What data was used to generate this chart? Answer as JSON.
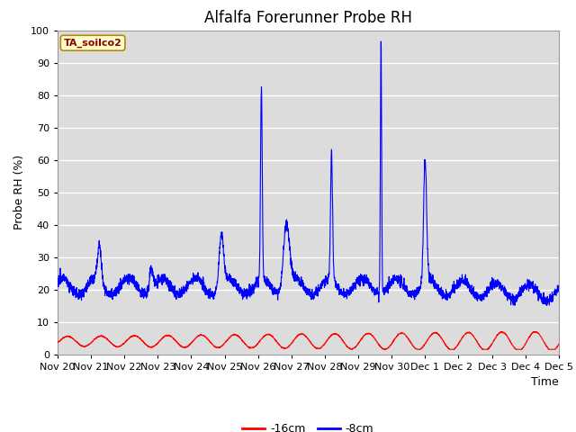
{
  "title": "Alfalfa Forerunner Probe RH",
  "ylabel": "Probe RH (%)",
  "xlabel": "Time",
  "station_label": "TA_soilco2",
  "ylim": [
    0,
    100
  ],
  "plot_bg": "#dcdcdc",
  "fig_bg": "#ffffff",
  "line_color_16cm": "#ff0000",
  "line_color_8cm": "#0000ff",
  "legend_labels": [
    "-16cm",
    "-8cm"
  ],
  "x_tick_labels": [
    "Nov 20",
    "Nov 21",
    "Nov 22",
    "Nov 23",
    "Nov 24",
    "Nov 25",
    "Nov 26",
    "Nov 27",
    "Nov 28",
    "Nov 29",
    "Nov 30",
    "Dec 1",
    "Dec 2",
    "Dec 3",
    "Dec 4",
    "Dec 5"
  ],
  "yticks": [
    0,
    10,
    20,
    30,
    40,
    50,
    60,
    70,
    80,
    90,
    100
  ],
  "title_fontsize": 12,
  "label_fontsize": 9,
  "tick_fontsize": 8,
  "station_fontsize": 8,
  "legend_fontsize": 9
}
